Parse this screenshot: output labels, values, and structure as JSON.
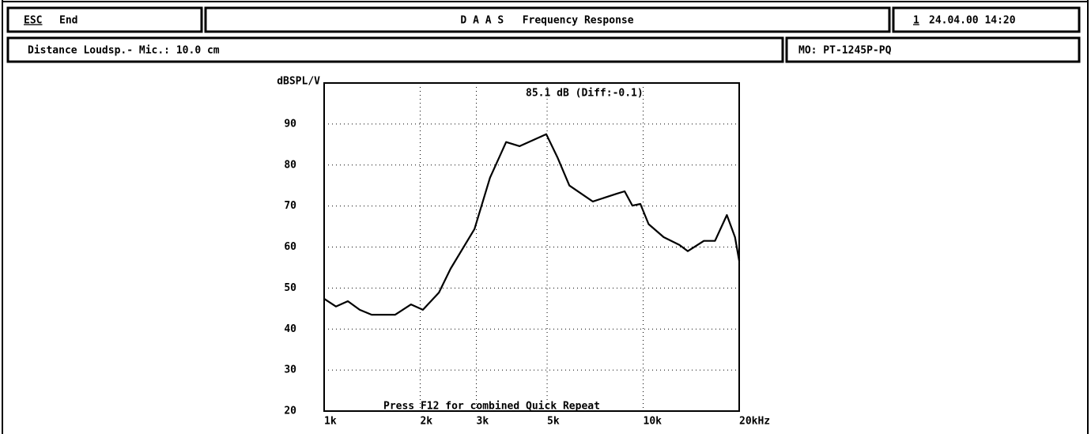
{
  "header": {
    "escape_key": "ESC",
    "escape_label": "End",
    "title": "D A A S   Frequency Response",
    "page": "1",
    "datetime": "24.04.00 14:20"
  },
  "info": {
    "distance": "Distance Loudsp.- Mic.: 10.0 cm",
    "model": "MO: PT-1245P-PQ"
  },
  "chart_data": {
    "type": "line",
    "y_label": "dBSPL/V",
    "annotation": "85.1 dB (Diff:-0.1)",
    "note": "Press F12 for combined Quick Repeat",
    "x": [
      1000,
      1089,
      1187,
      1293,
      1409,
      1670,
      1872,
      2040,
      2290,
      2490,
      2960,
      3310,
      3720,
      4100,
      4970,
      5400,
      5870,
      6950,
      8260,
      8750,
      9250,
      9800,
      10400,
      11600,
      13000,
      13800,
      15500,
      16800,
      18300,
      19400,
      20000
    ],
    "series": [
      {
        "color": "#000000",
        "values": [
          47.4,
          45.5,
          46.8,
          44.7,
          43.5,
          43.5,
          46,
          44.7,
          48.9,
          54.7,
          64.4,
          76.9,
          85.6,
          84.6,
          87.5,
          81.7,
          75,
          71.1,
          73,
          73.6,
          70.1,
          70.5,
          65.6,
          62.4,
          60.5,
          59,
          61.5,
          61.5,
          67.8,
          62.4,
          56.6
        ]
      }
    ],
    "xlog": true,
    "xlim": [
      1000,
      20000
    ],
    "xticks": [
      {
        "value": 1000,
        "label": "1k"
      },
      {
        "value": 2000,
        "label": "2k"
      },
      {
        "value": 3000,
        "label": "3k"
      },
      {
        "value": 5000,
        "label": "5k"
      },
      {
        "value": 10000,
        "label": "10k"
      },
      {
        "value": 20000,
        "label": "20kHz"
      }
    ],
    "ylim": [
      20,
      100
    ],
    "yticks": [
      20,
      30,
      40,
      50,
      60,
      70,
      80,
      90
    ],
    "grid": true
  }
}
